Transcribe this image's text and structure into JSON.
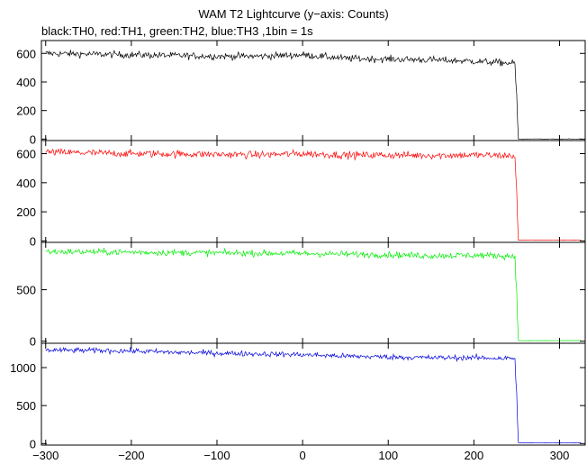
{
  "chart_data": {
    "type": "line",
    "title": "WAM T2 Lightcurve (y−axis: Counts)",
    "subtitle": "black:TH0, red:TH1, green:TH2, blue:TH3 ,1bin = 1s",
    "xlim": [
      -305,
      330
    ],
    "x_ticks": [
      -300,
      -200,
      -100,
      0,
      100,
      200,
      300
    ],
    "x_tick_labels": [
      "−300",
      "−200",
      "−100",
      "0",
      "100",
      "200",
      "300"
    ],
    "grid": false,
    "bin_seconds": 1,
    "panels": [
      {
        "series": "TH0",
        "color": "#000000",
        "ylim": [
          -10,
          690
        ],
        "y_ticks": [
          0,
          200,
          400,
          600
        ],
        "y_tick_labels": [
          "0",
          "200",
          "400",
          "600"
        ],
        "samples": [
          {
            "x": -300,
            "y": 600
          },
          {
            "x": -250,
            "y": 595
          },
          {
            "x": -200,
            "y": 590
          },
          {
            "x": -150,
            "y": 585
          },
          {
            "x": -100,
            "y": 580
          },
          {
            "x": -50,
            "y": 580
          },
          {
            "x": 0,
            "y": 590
          },
          {
            "x": 50,
            "y": 565
          },
          {
            "x": 100,
            "y": 560
          },
          {
            "x": 150,
            "y": 555
          },
          {
            "x": 200,
            "y": 545
          },
          {
            "x": 248,
            "y": 530
          },
          {
            "x": 252,
            "y": 0
          },
          {
            "x": 325,
            "y": 0
          }
        ],
        "noise": 17
      },
      {
        "series": "TH1",
        "color": "#ff0000",
        "ylim": [
          -10,
          690
        ],
        "y_ticks": [
          0,
          200,
          400,
          600
        ],
        "y_tick_labels": [
          "0",
          "200",
          "400",
          "600"
        ],
        "samples": [
          {
            "x": -300,
            "y": 610
          },
          {
            "x": -250,
            "y": 605
          },
          {
            "x": -200,
            "y": 600
          },
          {
            "x": -150,
            "y": 598
          },
          {
            "x": -100,
            "y": 595
          },
          {
            "x": -50,
            "y": 592
          },
          {
            "x": 0,
            "y": 600
          },
          {
            "x": 50,
            "y": 590
          },
          {
            "x": 100,
            "y": 590
          },
          {
            "x": 150,
            "y": 588
          },
          {
            "x": 200,
            "y": 590
          },
          {
            "x": 248,
            "y": 585
          },
          {
            "x": 252,
            "y": 5
          },
          {
            "x": 325,
            "y": 5
          }
        ],
        "noise": 18
      },
      {
        "series": "TH2",
        "color": "#00ee00",
        "ylim": [
          -20,
          960
        ],
        "y_ticks": [
          0,
          500
        ],
        "y_tick_labels": [
          "0",
          "500"
        ],
        "samples": [
          {
            "x": -300,
            "y": 870
          },
          {
            "x": -250,
            "y": 868
          },
          {
            "x": -200,
            "y": 865
          },
          {
            "x": -150,
            "y": 860
          },
          {
            "x": -100,
            "y": 858
          },
          {
            "x": -50,
            "y": 855
          },
          {
            "x": 0,
            "y": 852
          },
          {
            "x": 50,
            "y": 845
          },
          {
            "x": 100,
            "y": 840
          },
          {
            "x": 150,
            "y": 830
          },
          {
            "x": 200,
            "y": 835
          },
          {
            "x": 248,
            "y": 825
          },
          {
            "x": 252,
            "y": 5
          },
          {
            "x": 325,
            "y": 5
          }
        ],
        "noise": 22
      },
      {
        "series": "TH3",
        "color": "#0000dd",
        "ylim": [
          -20,
          1320
        ],
        "y_ticks": [
          0,
          500,
          1000
        ],
        "y_tick_labels": [
          "0",
          "500",
          "1000"
        ],
        "samples": [
          {
            "x": -300,
            "y": 1230
          },
          {
            "x": -250,
            "y": 1225
          },
          {
            "x": -200,
            "y": 1220
          },
          {
            "x": -150,
            "y": 1200
          },
          {
            "x": -100,
            "y": 1190
          },
          {
            "x": -50,
            "y": 1180
          },
          {
            "x": 0,
            "y": 1170
          },
          {
            "x": 50,
            "y": 1150
          },
          {
            "x": 100,
            "y": 1140
          },
          {
            "x": 150,
            "y": 1130
          },
          {
            "x": 200,
            "y": 1130
          },
          {
            "x": 248,
            "y": 1120
          },
          {
            "x": 252,
            "y": 10
          },
          {
            "x": 325,
            "y": 10
          }
        ],
        "noise": 25
      }
    ]
  }
}
